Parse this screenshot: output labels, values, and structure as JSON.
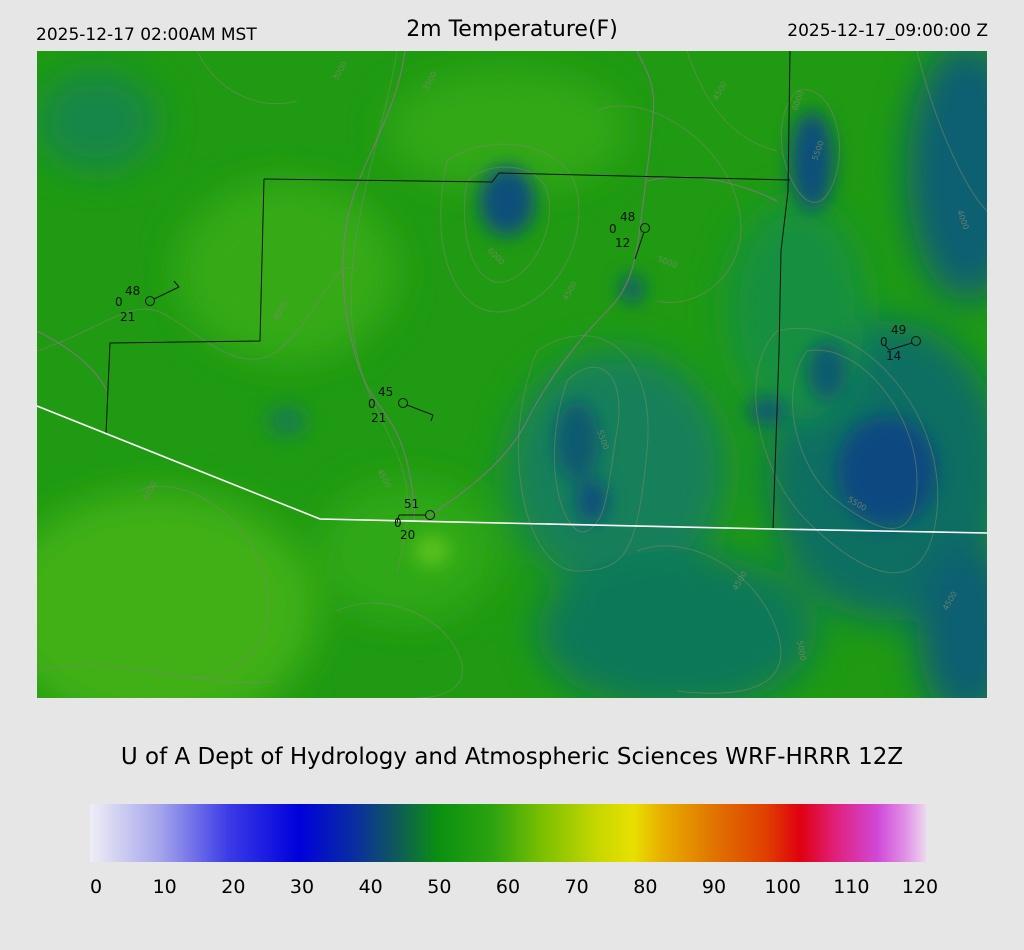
{
  "header": {
    "local_time": "2025-12-17 02:00AM MST",
    "title": "2m Temperature(F)",
    "utc_time": "2025-12-17_09:00:00 Z"
  },
  "credit": "U of A Dept of Hydrology and Atmospheric Sciences WRF-HRRR 12Z",
  "colorbar": {
    "min": 0,
    "max": 120,
    "ticks": [
      "0",
      "10",
      "20",
      "30",
      "40",
      "50",
      "60",
      "70",
      "80",
      "90",
      "100",
      "110",
      "120"
    ],
    "stops": [
      {
        "value": 0,
        "color": "#eeeef6"
      },
      {
        "value": 10,
        "color": "#a5a5ec"
      },
      {
        "value": 20,
        "color": "#3a3ae6"
      },
      {
        "value": 30,
        "color": "#0000dc"
      },
      {
        "value": 38,
        "color": "#0a2ea0"
      },
      {
        "value": 44,
        "color": "#0f5a5a"
      },
      {
        "value": 50,
        "color": "#0a9010"
      },
      {
        "value": 58,
        "color": "#2ea410"
      },
      {
        "value": 65,
        "color": "#7cc000"
      },
      {
        "value": 73,
        "color": "#c8d800"
      },
      {
        "value": 78,
        "color": "#e8e000"
      },
      {
        "value": 82,
        "color": "#e8b000"
      },
      {
        "value": 90,
        "color": "#e07000"
      },
      {
        "value": 97,
        "color": "#e04000"
      },
      {
        "value": 102,
        "color": "#e00010"
      },
      {
        "value": 107,
        "color": "#e0207a"
      },
      {
        "value": 113,
        "color": "#d048d8"
      },
      {
        "value": 117,
        "color": "#e090e6"
      },
      {
        "value": 120,
        "color": "#ecd8ee"
      }
    ]
  },
  "stations": [
    {
      "id": "stn-1",
      "temp": "48",
      "dew": "21",
      "cloud": "0"
    },
    {
      "id": "stn-2",
      "temp": "45",
      "dew": "21",
      "cloud": "0"
    },
    {
      "id": "stn-3",
      "temp": "51",
      "dew": "20",
      "cloud": "0"
    },
    {
      "id": "stn-4",
      "temp": "48",
      "dew": "12",
      "cloud": "0"
    },
    {
      "id": "stn-5",
      "temp": "49",
      "dew": "14",
      "cloud": "0"
    }
  ],
  "contour_labels": [
    "3000",
    "3500",
    "4000",
    "4500",
    "5000",
    "5500",
    "6000"
  ]
}
